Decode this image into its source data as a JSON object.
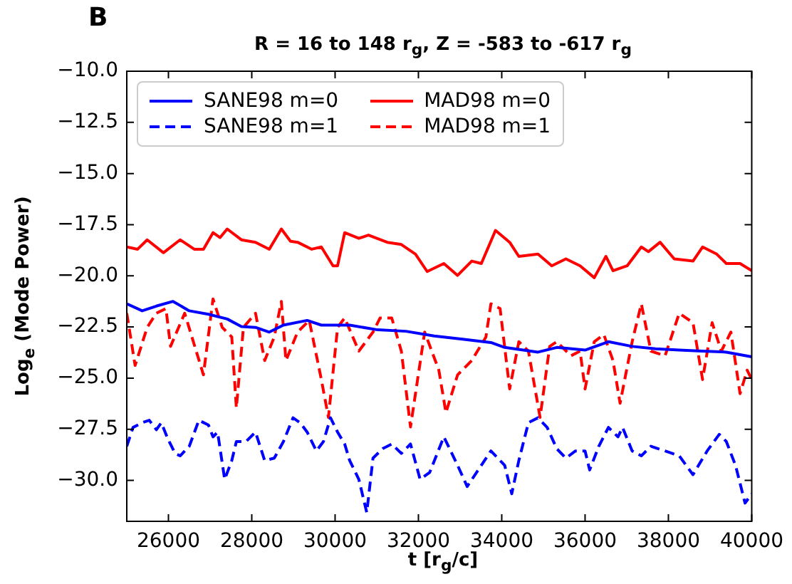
{
  "chart_data": {
    "type": "line",
    "title": "R = 16 to 148 r$_{g}$, Z = -583 to -617 r$_{g}$",
    "xlabel": "t [r$_{g}$/c]",
    "ylabel": "Log$_{e}$ (Mode Power)",
    "annotations": [
      "B"
    ],
    "xlim": [
      25000,
      40000
    ],
    "xticks": [
      26000,
      28000,
      30000,
      32000,
      34000,
      36000,
      38000,
      40000
    ],
    "ylim": [
      -32,
      -10
    ],
    "yticks": [
      {
        "value": -10,
        "label": "−10.0"
      },
      {
        "value": -12.5,
        "label": "−12.5"
      },
      {
        "value": -15,
        "label": "−15.0"
      },
      {
        "value": -17.5,
        "label": "−17.5"
      },
      {
        "value": -20,
        "label": "−20.0"
      },
      {
        "value": -22.5,
        "label": "−22.5"
      },
      {
        "value": -25,
        "label": "−25.0"
      },
      {
        "value": -27.5,
        "label": "−27.5"
      },
      {
        "value": -30,
        "label": "−30.0"
      }
    ],
    "grid": false,
    "legend": "top left",
    "marker": "none",
    "series": [
      {
        "name": "SANE98 m=0",
        "color": "#0000ff",
        "line_style": "solid",
        "x": [
          25000,
          25370,
          25710,
          26110,
          26500,
          26960,
          27410,
          27750,
          28090,
          28420,
          28760,
          29330,
          29670,
          30350,
          31020,
          31700,
          32380,
          33060,
          33740,
          34070,
          34870,
          35320,
          36000,
          36560,
          37130,
          37690,
          38260,
          38820,
          39390,
          40000
        ],
        "values": [
          -21.37,
          -21.71,
          -21.48,
          -21.25,
          -21.71,
          -21.88,
          -22.11,
          -22.48,
          -22.52,
          -22.75,
          -22.41,
          -22.18,
          -22.41,
          -22.41,
          -22.64,
          -22.71,
          -22.94,
          -23.1,
          -23.26,
          -23.5,
          -23.73,
          -23.5,
          -23.63,
          -23.22,
          -23.45,
          -23.57,
          -23.63,
          -23.68,
          -23.73,
          -23.96
        ]
      },
      {
        "name": "SANE98 m=1",
        "color": "#0000ff",
        "line_style": "dashed",
        "x": [
          25000,
          25150,
          25370,
          25540,
          25710,
          25830,
          25990,
          26160,
          26280,
          26500,
          26730,
          26960,
          27070,
          27180,
          27350,
          27520,
          27630,
          27860,
          28090,
          28310,
          28540,
          28760,
          28990,
          29160,
          29330,
          29550,
          29720,
          29890,
          30060,
          30230,
          30350,
          30570,
          30760,
          30910,
          31140,
          31360,
          31590,
          31810,
          32040,
          32270,
          32610,
          32940,
          33170,
          33510,
          33740,
          34070,
          34240,
          34410,
          34640,
          34870,
          35090,
          35320,
          35540,
          35770,
          36000,
          36110,
          36330,
          36560,
          36790,
          36900,
          37130,
          37350,
          37580,
          37920,
          38260,
          38590,
          38930,
          39220,
          39390,
          39610,
          39840,
          40000
        ],
        "values": [
          -28.33,
          -27.41,
          -27.18,
          -27.06,
          -27.52,
          -27.18,
          -27.99,
          -28.68,
          -28.8,
          -28.33,
          -27.06,
          -27.29,
          -27.87,
          -27.64,
          -29.95,
          -29.03,
          -28.1,
          -28.1,
          -27.64,
          -29.03,
          -28.91,
          -28.1,
          -26.94,
          -27.18,
          -27.64,
          -28.56,
          -28.1,
          -26.94,
          -27.64,
          -28.22,
          -29.03,
          -29.95,
          -31.57,
          -28.91,
          -28.45,
          -28.22,
          -28.68,
          -28.22,
          -29.95,
          -29.61,
          -27.87,
          -29.26,
          -30.3,
          -29.26,
          -28.56,
          -29.26,
          -30.65,
          -29.03,
          -27.18,
          -26.94,
          -27.41,
          -28.45,
          -28.91,
          -28.56,
          -28.56,
          -29.49,
          -28.33,
          -27.41,
          -27.87,
          -27.41,
          -28.56,
          -28.8,
          -28.33,
          -28.56,
          -28.8,
          -29.72,
          -28.56,
          -27.75,
          -28.1,
          -29.26,
          -31.11,
          -30.65
        ]
      },
      {
        "name": "MAD98 m=0",
        "color": "#ff0000",
        "line_style": "solid",
        "x": [
          25000,
          25260,
          25490,
          25880,
          26280,
          26620,
          26840,
          27070,
          27240,
          27410,
          27750,
          28090,
          28420,
          28710,
          28930,
          29100,
          29440,
          29670,
          29950,
          30060,
          30230,
          30570,
          30800,
          31250,
          31590,
          31930,
          32210,
          32610,
          32940,
          33280,
          33510,
          33850,
          34190,
          34410,
          34870,
          35200,
          35540,
          35880,
          36220,
          36500,
          36670,
          37010,
          37350,
          37520,
          37800,
          38140,
          38590,
          38820,
          39160,
          39390,
          39720,
          40000
        ],
        "values": [
          -18.59,
          -18.7,
          -18.24,
          -18.87,
          -18.24,
          -18.7,
          -18.7,
          -17.89,
          -18.13,
          -17.71,
          -18.24,
          -18.36,
          -18.7,
          -17.71,
          -18.31,
          -18.36,
          -18.7,
          -18.59,
          -19.51,
          -19.51,
          -17.89,
          -18.17,
          -18.01,
          -18.36,
          -18.47,
          -18.94,
          -19.79,
          -19.4,
          -19.98,
          -19.28,
          -19.4,
          -17.78,
          -18.36,
          -19.05,
          -18.94,
          -19.51,
          -19.17,
          -19.51,
          -20.09,
          -19.05,
          -19.75,
          -19.51,
          -18.59,
          -18.82,
          -18.36,
          -19.17,
          -19.28,
          -18.59,
          -18.94,
          -19.4,
          -19.4,
          -19.75
        ]
      },
      {
        "name": "MAD98 m=1",
        "color": "#ff0000",
        "line_style": "dashed",
        "x": [
          25000,
          25200,
          25490,
          25710,
          25940,
          26050,
          26390,
          26840,
          27070,
          27290,
          27520,
          27630,
          27800,
          28090,
          28310,
          28540,
          28710,
          28820,
          29100,
          29380,
          29670,
          29840,
          30060,
          30230,
          30570,
          30910,
          31080,
          31360,
          31590,
          31810,
          32150,
          32490,
          32660,
          32940,
          33280,
          33620,
          33740,
          33960,
          34190,
          34410,
          34640,
          34920,
          35150,
          35320,
          35660,
          35880,
          36000,
          36220,
          36450,
          36670,
          36840,
          37130,
          37350,
          37580,
          37920,
          38260,
          38590,
          38820,
          39050,
          39270,
          39500,
          39720,
          39890,
          40000
        ],
        "values": [
          -21.83,
          -24.38,
          -22.52,
          -21.83,
          -21.6,
          -23.45,
          -21.83,
          -24.84,
          -21.13,
          -22.52,
          -22.99,
          -26.46,
          -22.52,
          -21.83,
          -24.14,
          -22.99,
          -21.25,
          -24.14,
          -22.75,
          -22.18,
          -25.07,
          -26.92,
          -22.52,
          -22.06,
          -23.68,
          -22.75,
          -22.06,
          -22.06,
          -23.68,
          -27.39,
          -22.75,
          -24.61,
          -26.69,
          -24.84,
          -24.14,
          -22.99,
          -21.37,
          -21.6,
          -25.53,
          -23.22,
          -23.68,
          -26.92,
          -23.45,
          -23.22,
          -23.91,
          -23.68,
          -25.53,
          -23.22,
          -22.87,
          -24.14,
          -26.23,
          -23.22,
          -21.37,
          -23.68,
          -23.91,
          -21.83,
          -22.29,
          -25.07,
          -22.29,
          -23.68,
          -22.75,
          -25.76,
          -24.61,
          -25.07
        ]
      }
    ]
  }
}
